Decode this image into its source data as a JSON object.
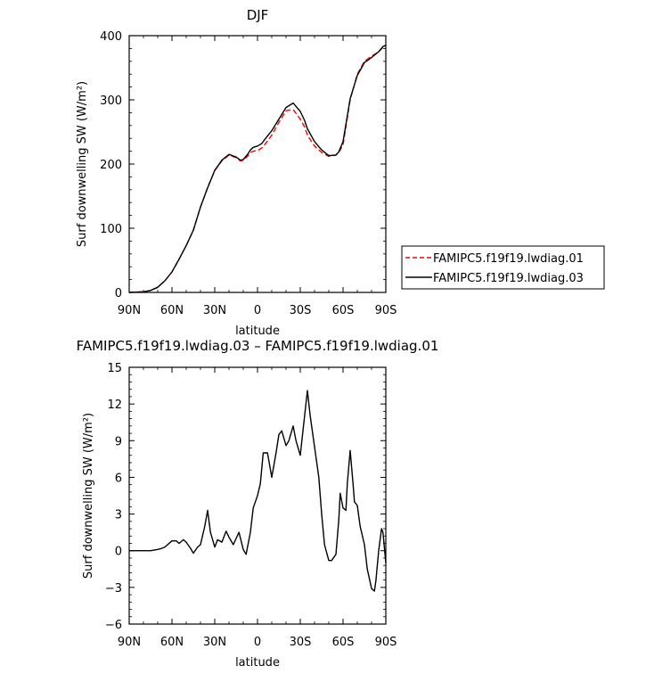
{
  "chart_data": [
    {
      "type": "line",
      "title": "DJF",
      "xlabel": "latitude",
      "ylabel": "Surf downwelling SW (W/m²)",
      "xlim": [
        90,
        -90
      ],
      "ylim": [
        0,
        400
      ],
      "x_ticks": [
        90,
        60,
        30,
        0,
        -30,
        -60,
        -90
      ],
      "x_tick_labels": [
        "90N",
        "60N",
        "30N",
        "0",
        "30S",
        "60S",
        "90S"
      ],
      "y_ticks": [
        0,
        100,
        200,
        300,
        400
      ],
      "y_tick_labels": [
        "0",
        "100",
        "200",
        "300",
        "400"
      ],
      "legend_position": "right",
      "series": [
        {
          "name": "FAMIPC5.f19f19.lwdiag.01",
          "color": "#ff0000",
          "dash": "dashed",
          "x": [
            90,
            80,
            75,
            70,
            65,
            60,
            55,
            50,
            45,
            40,
            35,
            30,
            25,
            20,
            15,
            12,
            10,
            7,
            5,
            3,
            0,
            -3,
            -5,
            -10,
            -15,
            -20,
            -25,
            -30,
            -33,
            -35,
            -40,
            -45,
            -50,
            -55,
            -57,
            -60,
            -65,
            -70,
            -73,
            -75,
            -80,
            -85,
            -88,
            -90
          ],
          "y": [
            0,
            1,
            3,
            8,
            18,
            32,
            52,
            73,
            97,
            133,
            163,
            190,
            205,
            214,
            210,
            205,
            206,
            212,
            218,
            220,
            221,
            225,
            230,
            245,
            265,
            283,
            285,
            270,
            258,
            245,
            228,
            218,
            212,
            214,
            218,
            230,
            300,
            340,
            352,
            360,
            368,
            375,
            382,
            385
          ]
        },
        {
          "name": "FAMIPC5.f19f19.lwdiag.03",
          "color": "#000000",
          "dash": "solid",
          "x": [
            90,
            80,
            75,
            70,
            65,
            60,
            55,
            50,
            45,
            40,
            35,
            30,
            25,
            20,
            15,
            12,
            10,
            7,
            5,
            3,
            0,
            -3,
            -5,
            -10,
            -15,
            -20,
            -25,
            -30,
            -33,
            -35,
            -40,
            -45,
            -50,
            -55,
            -57,
            -60,
            -65,
            -70,
            -73,
            -75,
            -80,
            -85,
            -88,
            -90
          ],
          "y": [
            0,
            1,
            3,
            8,
            18,
            32,
            52,
            73,
            97,
            133,
            163,
            190,
            206,
            215,
            211,
            206,
            207,
            215,
            222,
            226,
            228,
            232,
            238,
            252,
            270,
            288,
            295,
            282,
            268,
            255,
            235,
            222,
            213,
            214,
            219,
            235,
            302,
            338,
            350,
            358,
            366,
            375,
            383,
            385
          ]
        }
      ]
    },
    {
      "type": "line",
      "title": "FAMIPC5.f19f19.lwdiag.03 – FAMIPC5.f19f19.lwdiag.01",
      "xlabel": "latitude",
      "ylabel": "Surf downwelling SW (W/m²)",
      "xlim": [
        90,
        -90
      ],
      "ylim": [
        -6,
        15
      ],
      "x_ticks": [
        90,
        60,
        30,
        0,
        -30,
        -60,
        -90
      ],
      "x_tick_labels": [
        "90N",
        "60N",
        "30N",
        "0",
        "30S",
        "60S",
        "90S"
      ],
      "y_ticks": [
        -6,
        -3,
        0,
        3,
        6,
        9,
        12,
        15
      ],
      "y_tick_labels": [
        "−6",
        "−3",
        "0",
        "3",
        "6",
        "9",
        "12",
        "15"
      ],
      "series": [
        {
          "color": "#000000",
          "dash": "solid",
          "x": [
            90,
            80,
            75,
            70,
            67,
            65,
            60,
            57,
            55,
            52,
            50,
            47,
            45,
            42,
            40,
            37,
            35,
            33,
            30,
            28,
            25,
            22,
            20,
            17,
            15,
            13,
            10,
            8,
            5,
            3,
            0,
            -2,
            -4,
            -7,
            -10,
            -13,
            -15,
            -17,
            -20,
            -22,
            -25,
            -27,
            -30,
            -33,
            -35,
            -37,
            -40,
            -43,
            -45,
            -47,
            -50,
            -52,
            -55,
            -57,
            -58,
            -60,
            -62,
            -63,
            -65,
            -67,
            -68,
            -70,
            -72,
            -75,
            -77,
            -80,
            -82,
            -83,
            -85,
            -87,
            -88,
            -90
          ],
          "y": [
            0,
            0,
            0,
            0.1,
            0.2,
            0.3,
            0.8,
            0.8,
            0.6,
            0.9,
            0.7,
            0.2,
            -0.2,
            0.3,
            0.5,
            2.0,
            3.3,
            1.5,
            0.3,
            0.9,
            0.7,
            1.6,
            1.1,
            0.5,
            1.0,
            1.5,
            0.1,
            -0.3,
            1.5,
            3.5,
            4.5,
            5.5,
            8.0,
            8.0,
            6.0,
            8.0,
            9.5,
            9.8,
            8.6,
            9.0,
            10.2,
            9.0,
            7.8,
            11.0,
            13.1,
            11.0,
            8.5,
            6.0,
            3.0,
            0.5,
            -0.8,
            -0.8,
            -0.3,
            2.5,
            4.7,
            3.5,
            3.3,
            5.5,
            8.2,
            5.5,
            4.0,
            3.7,
            2.0,
            0.5,
            -1.5,
            -3.1,
            -3.3,
            -2.5,
            0.0,
            1.8,
            1.5,
            -1.0
          ]
        }
      ]
    }
  ]
}
